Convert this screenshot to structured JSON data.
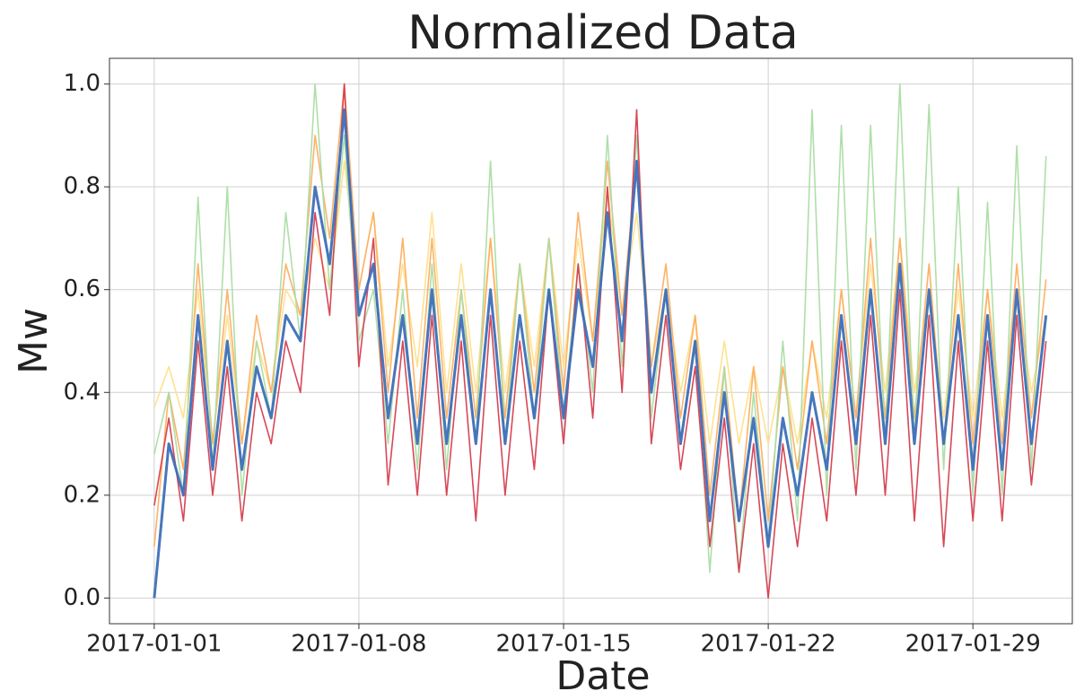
{
  "chart_data": {
    "type": "line",
    "title": "Normalized Data",
    "xlabel": "Date",
    "ylabel": "Mw",
    "x": [
      0,
      0.5,
      1,
      1.5,
      2,
      2.5,
      3,
      3.5,
      4,
      4.5,
      5,
      5.5,
      6,
      6.5,
      7,
      7.5,
      8,
      8.5,
      9,
      9.5,
      10,
      10.5,
      11,
      11.5,
      12,
      12.5,
      13,
      13.5,
      14,
      14.5,
      15,
      15.5,
      16,
      16.5,
      17,
      17.5,
      18,
      18.5,
      19,
      19.5,
      20,
      20.5,
      21,
      21.5,
      22,
      22.5,
      23,
      23.5,
      24,
      24.5,
      25,
      25.5,
      26,
      26.5,
      27,
      27.5,
      28,
      28.5,
      29,
      29.5,
      30,
      30.5
    ],
    "series": [
      {
        "color": "#fee08b",
        "values": [
          0.37,
          0.45,
          0.35,
          0.6,
          0.3,
          0.55,
          0.3,
          0.5,
          0.4,
          0.6,
          0.55,
          0.7,
          0.6,
          0.85,
          0.6,
          0.75,
          0.45,
          0.65,
          0.45,
          0.75,
          0.4,
          0.65,
          0.4,
          0.7,
          0.4,
          0.65,
          0.45,
          0.7,
          0.45,
          0.7,
          0.5,
          0.8,
          0.55,
          0.75,
          0.45,
          0.6,
          0.4,
          0.55,
          0.3,
          0.5,
          0.3,
          0.45,
          0.3,
          0.45,
          0.3,
          0.5,
          0.35,
          0.6,
          0.35,
          0.65,
          0.4,
          0.7,
          0.4,
          0.6,
          0.35,
          0.6,
          0.35,
          0.6,
          0.35,
          0.6,
          0.4,
          0.55
        ]
      },
      {
        "color": "#fdae61",
        "values": [
          0.1,
          0.4,
          0.25,
          0.65,
          0.3,
          0.6,
          0.3,
          0.55,
          0.4,
          0.65,
          0.55,
          0.9,
          0.7,
          1.0,
          0.6,
          0.75,
          0.4,
          0.7,
          0.35,
          0.7,
          0.35,
          0.6,
          0.35,
          0.7,
          0.35,
          0.65,
          0.4,
          0.7,
          0.4,
          0.75,
          0.5,
          0.85,
          0.55,
          0.85,
          0.45,
          0.65,
          0.35,
          0.55,
          0.2,
          0.45,
          0.15,
          0.45,
          0.15,
          0.45,
          0.25,
          0.5,
          0.3,
          0.6,
          0.35,
          0.7,
          0.35,
          0.7,
          0.35,
          0.65,
          0.3,
          0.65,
          0.3,
          0.6,
          0.3,
          0.65,
          0.35,
          0.62
        ]
      },
      {
        "color": "#abdda4",
        "values": [
          0.28,
          0.4,
          0.2,
          0.78,
          0.25,
          0.8,
          0.2,
          0.5,
          0.35,
          0.75,
          0.5,
          1.0,
          0.6,
          0.9,
          0.5,
          0.6,
          0.3,
          0.6,
          0.25,
          0.65,
          0.25,
          0.6,
          0.3,
          0.85,
          0.3,
          0.65,
          0.35,
          0.7,
          0.35,
          0.65,
          0.4,
          0.9,
          0.45,
          0.9,
          0.35,
          0.6,
          0.3,
          0.5,
          0.05,
          0.45,
          0.05,
          0.4,
          0.1,
          0.5,
          0.15,
          0.95,
          0.2,
          0.92,
          0.25,
          0.92,
          0.3,
          1.0,
          0.3,
          0.96,
          0.25,
          0.8,
          0.2,
          0.77,
          0.2,
          0.88,
          0.25,
          0.86
        ]
      },
      {
        "color": "#d53e4f",
        "values": [
          0.18,
          0.35,
          0.15,
          0.5,
          0.2,
          0.45,
          0.15,
          0.4,
          0.3,
          0.5,
          0.4,
          0.75,
          0.55,
          1.0,
          0.45,
          0.7,
          0.22,
          0.5,
          0.2,
          0.55,
          0.2,
          0.5,
          0.15,
          0.55,
          0.2,
          0.5,
          0.25,
          0.6,
          0.3,
          0.65,
          0.35,
          0.8,
          0.4,
          0.95,
          0.3,
          0.55,
          0.25,
          0.45,
          0.1,
          0.35,
          0.05,
          0.3,
          0.0,
          0.3,
          0.1,
          0.35,
          0.15,
          0.5,
          0.2,
          0.55,
          0.2,
          0.6,
          0.15,
          0.55,
          0.1,
          0.5,
          0.15,
          0.5,
          0.15,
          0.55,
          0.22,
          0.5
        ]
      },
      {
        "color": "#3e6fb8",
        "values": [
          0,
          0.3,
          0.2,
          0.55,
          0.25,
          0.5,
          0.25,
          0.45,
          0.35,
          0.55,
          0.5,
          0.8,
          0.65,
          0.95,
          0.55,
          0.65,
          0.35,
          0.55,
          0.3,
          0.6,
          0.3,
          0.55,
          0.3,
          0.6,
          0.3,
          0.55,
          0.35,
          0.6,
          0.35,
          0.6,
          0.45,
          0.75,
          0.5,
          0.85,
          0.4,
          0.6,
          0.3,
          0.5,
          0.15,
          0.4,
          0.15,
          0.35,
          0.1,
          0.35,
          0.2,
          0.4,
          0.25,
          0.55,
          0.3,
          0.6,
          0.3,
          0.65,
          0.3,
          0.6,
          0.3,
          0.55,
          0.25,
          0.55,
          0.25,
          0.6,
          0.3,
          0.55
        ]
      }
    ],
    "xlim": [
      -1.53,
      31.4
    ],
    "xticks": [
      {
        "value": 0,
        "label": "2017-01-01"
      },
      {
        "value": 7,
        "label": "2017-01-08"
      },
      {
        "value": 14,
        "label": "2017-01-15"
      },
      {
        "value": 21,
        "label": "2017-01-22"
      },
      {
        "value": 28,
        "label": "2017-01-29"
      }
    ],
    "ylim": [
      -0.05,
      1.05
    ],
    "yticks": [
      {
        "value": 0,
        "label": "0.0"
      },
      0.2,
      0.4,
      0.6,
      0.8,
      {
        "value": 1,
        "label": "1.0"
      }
    ],
    "grid": true
  }
}
